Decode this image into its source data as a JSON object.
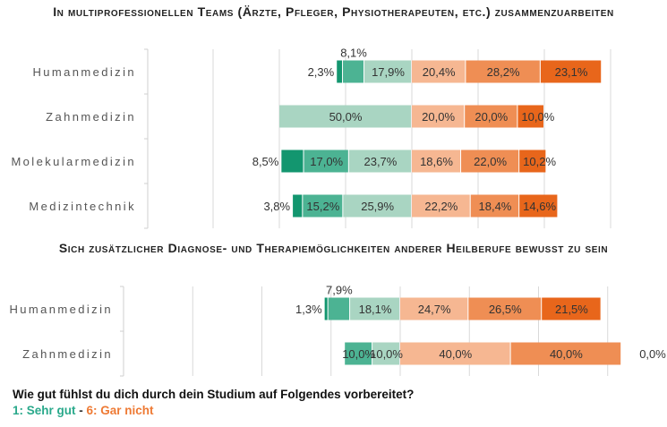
{
  "colors": {
    "level1": "#13966f",
    "level2": "#4cb393",
    "level3": "#a9d5c2",
    "level4": "#f6b792",
    "level5": "#ef8e54",
    "level6": "#e8661b",
    "grid": "#d9d9d9"
  },
  "chart_data": [
    {
      "type": "bar",
      "orientation": "horizontal",
      "stacked": "diverging",
      "title": "In multiprofessionellen Teams (Ärzte, Pfleger, Physiotherapeuten, etc.) zusammenzuarbeiten",
      "legend": [
        "1",
        "2",
        "3",
        "4",
        "5",
        "6"
      ],
      "categories": [
        "Humanmedizin",
        "Zahnmedizin",
        "Molekularmedizin",
        "Medizintechnik"
      ],
      "series": [
        {
          "name": "1",
          "values": [
            2.3,
            0,
            8.5,
            3.8
          ]
        },
        {
          "name": "2",
          "values": [
            8.1,
            0,
            17.0,
            15.2
          ]
        },
        {
          "name": "3",
          "values": [
            17.9,
            50.0,
            23.7,
            25.9
          ]
        },
        {
          "name": "4",
          "values": [
            20.4,
            20.0,
            18.6,
            22.2
          ]
        },
        {
          "name": "5",
          "values": [
            28.2,
            20.0,
            22.0,
            18.4
          ]
        },
        {
          "name": "6",
          "values": [
            23.1,
            10.0,
            10.2,
            14.6
          ]
        }
      ],
      "labels": [
        [
          "2,3%",
          "8,1%",
          "17,9%",
          "20,4%",
          "28,2%",
          "23,1%"
        ],
        [
          null,
          null,
          "50,0%",
          "20,0%",
          "20,0%",
          "10,0%"
        ],
        [
          "8,5%",
          "17,0%",
          "23,7%",
          "18,6%",
          "22,0%",
          "10,2%"
        ],
        [
          "3,8%",
          "15,2%",
          "25,9%",
          "22,2%",
          "18,4%",
          "14,6%"
        ]
      ],
      "xlim": [
        -75,
        100
      ],
      "grid": true,
      "unit": "%"
    },
    {
      "type": "bar",
      "orientation": "horizontal",
      "stacked": "diverging",
      "title": "Sich zusätzlicher Diagnose- und Therapiemöglichkeiten anderer Heilberufe bewusst zu sein",
      "legend": [
        "1",
        "2",
        "3",
        "4",
        "5",
        "6"
      ],
      "categories": [
        "Humanmedizin",
        "Zahnmedizin"
      ],
      "series": [
        {
          "name": "1",
          "values": [
            1.3,
            0
          ]
        },
        {
          "name": "2",
          "values": [
            7.9,
            10.0
          ]
        },
        {
          "name": "3",
          "values": [
            18.1,
            10.0
          ]
        },
        {
          "name": "4",
          "values": [
            24.7,
            40.0
          ]
        },
        {
          "name": "5",
          "values": [
            26.5,
            40.0
          ]
        },
        {
          "name": "6",
          "values": [
            21.5,
            0.0
          ]
        }
      ],
      "labels": [
        [
          "1,3%",
          "7,9%",
          "18,1%",
          "24,7%",
          "26,5%",
          "21,5%"
        ],
        [
          null,
          "10,0%",
          "10,0%",
          "40,0%",
          "40,0%",
          "0,0%"
        ]
      ],
      "xlim": [
        -75,
        100
      ],
      "grid": true,
      "unit": "%"
    }
  ],
  "footer": {
    "question": "Wie gut fühlst du dich durch dein Studium auf Folgendes vorbereitet?",
    "scale_good": "1: Sehr gut",
    "scale_sep": " - ",
    "scale_bad": "6: Gar nicht"
  }
}
